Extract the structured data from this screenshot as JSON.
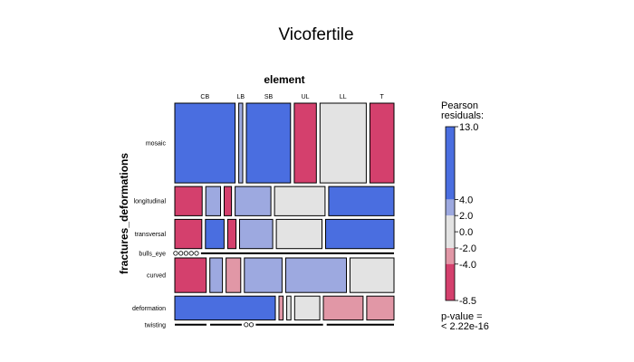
{
  "chart_data": {
    "type": "mosaic",
    "title": "Vicofertile",
    "col_variable": "element",
    "row_variable": "fractures_deformations",
    "columns": [
      "CB",
      "LB",
      "SB",
      "UL",
      "LL",
      "T"
    ],
    "rows": [
      "mosaic",
      "longitudinal",
      "transversal",
      "bulls_eye",
      "curved",
      "deformation",
      "twisting"
    ],
    "row_shares": [
      0.3,
      0.11,
      0.11,
      0.008,
      0.13,
      0.09,
      0.008
    ],
    "cells": [
      {
        "row": "mosaic",
        "widths": [
          0.3,
          0.02,
          0.22,
          0.11,
          0.23,
          0.12
        ],
        "levels": [
          4,
          1,
          4,
          -4,
          0,
          -4
        ]
      },
      {
        "row": "longitudinal",
        "widths": [
          0.13,
          0.07,
          0.035,
          0.17,
          0.24,
          0.31
        ],
        "levels": [
          -4,
          1,
          -4,
          1,
          0,
          4
        ]
      },
      {
        "row": "transversal",
        "widths": [
          0.13,
          0.09,
          0.04,
          0.16,
          0.22,
          0.33
        ],
        "levels": [
          -4,
          4,
          -4,
          1,
          0,
          4
        ]
      },
      {
        "row": "bulls_eye",
        "widths": [
          0.008,
          0.008,
          0.008,
          0.008,
          0.008,
          0.96
        ],
        "levels": [
          0,
          0,
          0,
          0,
          0,
          0
        ]
      },
      {
        "row": "curved",
        "widths": [
          0.15,
          0.06,
          0.07,
          0.18,
          0.29,
          0.21
        ],
        "levels": [
          -4,
          1,
          -2,
          1,
          1,
          0
        ]
      },
      {
        "row": "deformation",
        "widths": [
          0.48,
          0.02,
          0.02,
          0.12,
          0.19,
          0.13
        ],
        "levels": [
          4,
          -2,
          0,
          0,
          -2,
          -2
        ]
      },
      {
        "row": "twisting",
        "widths": [
          0.16,
          0.16,
          0.008,
          0.008,
          0.34,
          0.34
        ],
        "levels": [
          0,
          0,
          0,
          0,
          0,
          0
        ]
      }
    ],
    "legend": {
      "title_line1": "Pearson",
      "title_line2": "residuals:",
      "ticks": [
        "13.0",
        "4.0",
        "2.0",
        "0.0",
        "-2.0",
        "-4.0",
        "-8.5"
      ],
      "p_value_line1": "p-value =",
      "p_value_line2": "< 2.22e-16"
    },
    "colors": {
      "strong_positive": "#4a6ee0",
      "weak_positive": "#9da9e0",
      "neutral": "#e3e3e3",
      "weak_negative": "#e197a6",
      "strong_negative": "#d4406d"
    }
  }
}
